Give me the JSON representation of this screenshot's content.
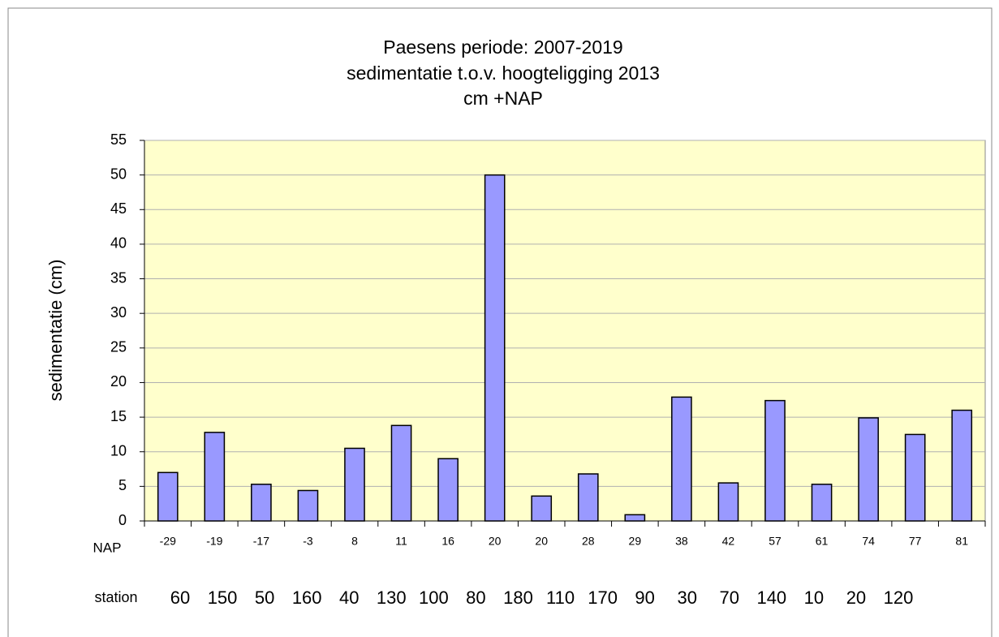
{
  "chart_data": {
    "type": "bar",
    "title": [
      "Paesens periode: 2007-2019",
      "sedimentatie t.o.v. hoogteligging 2013",
      "cm +NAP"
    ],
    "y_label": "sedimentatie (cm)",
    "category_row_label": "NAP",
    "categories": [
      "-29",
      "-19",
      "-17",
      "-3",
      "8",
      "11",
      "16",
      "20",
      "20",
      "28",
      "29",
      "38",
      "42",
      "57",
      "61",
      "74",
      "77",
      "81"
    ],
    "station_row_label": "station",
    "stations": [
      "60",
      "150",
      "50",
      "160",
      "40",
      "130",
      "100",
      "80",
      "180",
      "110",
      "170",
      "90",
      "30",
      "70",
      "140",
      "10",
      "20",
      "120"
    ],
    "values": [
      7,
      12.8,
      5.3,
      4.4,
      10.5,
      13.8,
      9,
      50,
      3.6,
      6.8,
      0.9,
      17.9,
      5.5,
      17.4,
      5.3,
      14.9,
      12.5,
      16
    ],
    "color": "#9999ff",
    "ylim": [
      0,
      55
    ],
    "yticks": [
      0,
      5,
      10,
      15,
      20,
      25,
      30,
      35,
      40,
      45,
      50,
      55
    ],
    "grid": true
  }
}
